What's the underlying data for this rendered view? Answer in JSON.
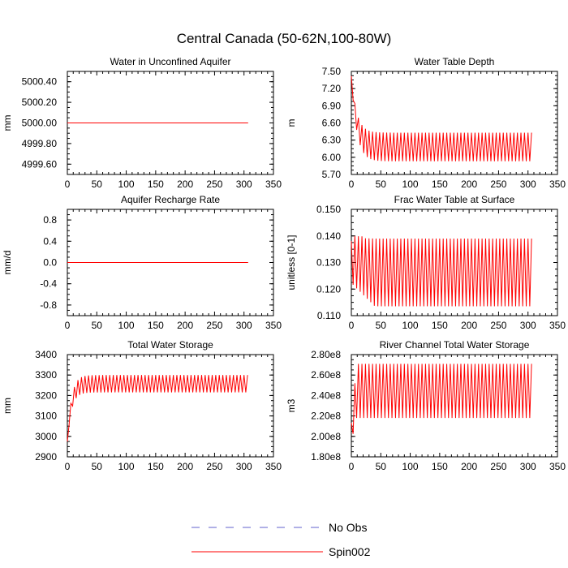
{
  "figure": {
    "title": "Central Canada (50-62N,100-80W)",
    "colors": {
      "axis": "#000000",
      "spin": "#ff0000",
      "obs": "#6060cc",
      "background": "#ffffff"
    }
  },
  "legend": {
    "entries": [
      {
        "label": "No Obs",
        "style": "dashed",
        "color": "#6060cc"
      },
      {
        "label": "Spin002",
        "style": "solid",
        "color": "#ff0000"
      }
    ]
  },
  "chart_data": [
    {
      "type": "line",
      "title": "Water in Unconfined Aquifer",
      "ylabel": "mm",
      "xlabel": "",
      "xlim": [
        0,
        350
      ],
      "ylim": [
        4999.5,
        5000.5
      ],
      "xticks": [
        0,
        50,
        100,
        150,
        200,
        250,
        300,
        350
      ],
      "xtick_labels": [
        "0",
        "50",
        "100",
        "150",
        "200",
        "250",
        "300",
        "350"
      ],
      "yticks": [
        4999.6,
        4999.8,
        5000.0,
        5000.2,
        5000.4
      ],
      "ytick_labels": [
        "4999.60",
        "4999.80",
        "5000.00",
        "5000.20",
        "5000.40"
      ],
      "series": [
        {
          "name": "Spin002",
          "shape": "flat",
          "x_end": 307,
          "value": 5000.0
        }
      ]
    },
    {
      "type": "line",
      "title": "Water Table Depth",
      "ylabel": "m",
      "xlabel": "",
      "xlim": [
        0,
        350
      ],
      "ylim": [
        5.7,
        7.5
      ],
      "xticks": [
        0,
        50,
        100,
        150,
        200,
        250,
        300,
        350
      ],
      "xtick_labels": [
        "0",
        "50",
        "100",
        "150",
        "200",
        "250",
        "300",
        "350"
      ],
      "yticks": [
        5.7,
        6.0,
        6.3,
        6.6,
        6.9,
        7.2,
        7.5
      ],
      "ytick_labels": [
        "5.70",
        "6.00",
        "6.30",
        "6.60",
        "6.90",
        "7.20",
        "7.50"
      ],
      "series": [
        {
          "name": "Spin002",
          "shape": "oscillation",
          "x_end": 307,
          "period": 6,
          "start": 7.42,
          "settle": 25,
          "high": 6.43,
          "low": 5.93,
          "shape_kind": "decay"
        }
      ]
    },
    {
      "type": "line",
      "title": "Aquifer Recharge Rate",
      "ylabel": "mm/d",
      "xlabel": "",
      "xlim": [
        0,
        350
      ],
      "ylim": [
        -1.0,
        1.0
      ],
      "xticks": [
        0,
        50,
        100,
        150,
        200,
        250,
        300,
        350
      ],
      "xtick_labels": [
        "0",
        "50",
        "100",
        "150",
        "200",
        "250",
        "300",
        "350"
      ],
      "yticks": [
        -0.8,
        -0.4,
        0.0,
        0.4,
        0.8
      ],
      "ytick_labels": [
        "-0.8",
        "-0.4",
        "0.0",
        "0.4",
        "0.8"
      ],
      "series": [
        {
          "name": "Spin002",
          "shape": "flat",
          "x_end": 307,
          "value": 0.0
        }
      ]
    },
    {
      "type": "line",
      "title": "Frac Water Table at Surface",
      "ylabel": "unitless [0-1]",
      "xlabel": "",
      "xlim": [
        0,
        350
      ],
      "ylim": [
        0.11,
        0.15
      ],
      "xticks": [
        0,
        50,
        100,
        150,
        200,
        250,
        300,
        350
      ],
      "xtick_labels": [
        "0",
        "50",
        "100",
        "150",
        "200",
        "250",
        "300",
        "350"
      ],
      "yticks": [
        0.11,
        0.12,
        0.13,
        0.14,
        0.15
      ],
      "ytick_labels": [
        "0.110",
        "0.120",
        "0.130",
        "0.140",
        "0.150"
      ],
      "series": [
        {
          "name": "Spin002",
          "shape": "oscillation",
          "x_end": 307,
          "period": 6,
          "start": 0.136,
          "settle": 40,
          "high": 0.139,
          "low": 0.1135,
          "mid": 0.126,
          "shape_kind": "spiky"
        }
      ]
    },
    {
      "type": "line",
      "title": "Total Water Storage",
      "ylabel": "mm",
      "xlabel": "",
      "xlim": [
        0,
        350
      ],
      "ylim": [
        2900,
        3400
      ],
      "xticks": [
        0,
        50,
        100,
        150,
        200,
        250,
        300,
        350
      ],
      "xtick_labels": [
        "0",
        "50",
        "100",
        "150",
        "200",
        "250",
        "300",
        "350"
      ],
      "yticks": [
        2900,
        3000,
        3100,
        3200,
        3300,
        3400
      ],
      "ytick_labels": [
        "2900",
        "3000",
        "3100",
        "3200",
        "3300",
        "3400"
      ],
      "series": [
        {
          "name": "Spin002",
          "shape": "oscillation",
          "x_end": 307,
          "period": 6,
          "start": 2975,
          "settle": 20,
          "high": 3300,
          "low": 3215,
          "shape_kind": "rise"
        }
      ]
    },
    {
      "type": "line",
      "title": "River Channel Total Water Storage",
      "ylabel": "m3",
      "xlabel": "",
      "xlim": [
        0,
        350
      ],
      "ylim": [
        180000000.0,
        280000000.0
      ],
      "xticks": [
        0,
        50,
        100,
        150,
        200,
        250,
        300,
        350
      ],
      "xtick_labels": [
        "0",
        "50",
        "100",
        "150",
        "200",
        "250",
        "300",
        "350"
      ],
      "yticks": [
        180000000.0,
        200000000.0,
        220000000.0,
        240000000.0,
        260000000.0,
        280000000.0
      ],
      "ytick_labels": [
        "1.80e8",
        "2.00e8",
        "2.20e8",
        "2.40e8",
        "2.60e8",
        "2.80e8"
      ],
      "series": [
        {
          "name": "Spin002",
          "shape": "oscillation",
          "x_end": 307,
          "period": 6,
          "start": 198000000.0,
          "settle": 8,
          "high": 271000000.0,
          "low": 218000000.0,
          "mid": 250000000.0,
          "shape_kind": "river"
        }
      ]
    }
  ]
}
